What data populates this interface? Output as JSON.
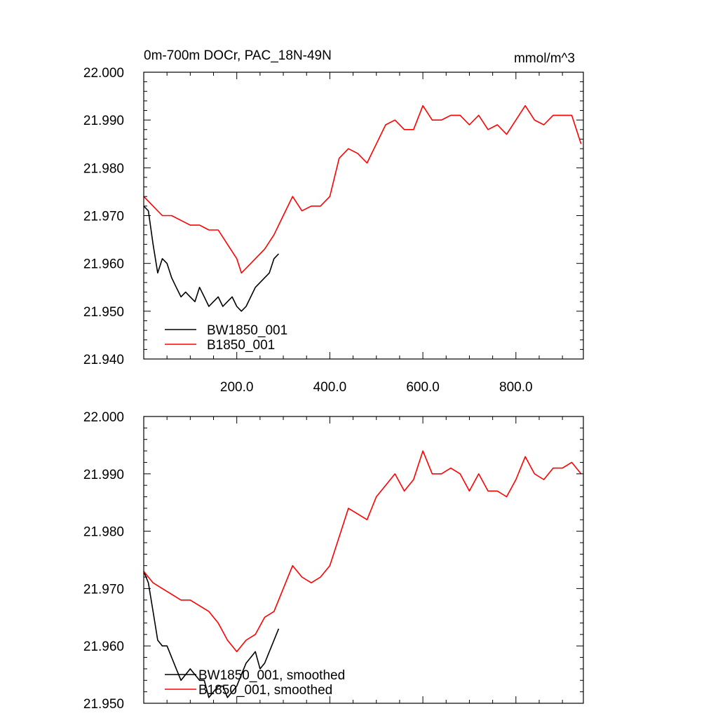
{
  "colors": {
    "BW1850_001": "#000000",
    "B1850_001": "#ff0000"
  },
  "chart_data": [
    {
      "type": "line",
      "title": "0m-700m DOCr, PAC_18N-49N",
      "units": "mmol/m^3",
      "xlim": [
        0,
        945
      ],
      "ylim": [
        21.94,
        22.0
      ],
      "grid": false,
      "x_ticks": [
        200,
        400,
        600,
        800
      ],
      "x_tick_labels": [
        "200.0",
        "400.0",
        "600.0",
        "800.0"
      ],
      "y_ticks": [
        21.94,
        21.95,
        21.96,
        21.97,
        21.98,
        21.99,
        22.0
      ],
      "y_tick_labels": [
        "21.940",
        "21.950",
        "21.960",
        "21.970",
        "21.980",
        "21.990",
        "22.000"
      ],
      "legend_position": "bottom-left",
      "series": [
        {
          "name": "BW1850_001",
          "color": "#000000",
          "x": [
            0,
            10,
            20,
            30,
            40,
            50,
            60,
            70,
            80,
            90,
            100,
            110,
            120,
            130,
            140,
            150,
            160,
            170,
            180,
            190,
            200,
            210,
            220,
            230,
            240,
            250,
            260,
            270,
            280,
            290
          ],
          "y": [
            21.972,
            21.971,
            21.964,
            21.958,
            21.961,
            21.96,
            21.957,
            21.955,
            21.953,
            21.954,
            21.953,
            21.952,
            21.955,
            21.953,
            21.951,
            21.952,
            21.953,
            21.951,
            21.952,
            21.953,
            21.951,
            21.95,
            21.951,
            21.953,
            21.955,
            21.956,
            21.957,
            21.958,
            21.961,
            21.962
          ]
        },
        {
          "name": "B1850_001",
          "color": "#ff0000",
          "x": [
            0,
            20,
            40,
            60,
            80,
            100,
            120,
            140,
            160,
            180,
            200,
            210,
            220,
            240,
            260,
            280,
            300,
            320,
            340,
            360,
            380,
            400,
            420,
            440,
            460,
            480,
            500,
            520,
            540,
            560,
            580,
            600,
            620,
            640,
            660,
            680,
            700,
            720,
            740,
            760,
            780,
            800,
            820,
            840,
            860,
            880,
            900,
            920,
            940
          ],
          "y": [
            21.974,
            21.972,
            21.97,
            21.97,
            21.969,
            21.968,
            21.968,
            21.967,
            21.967,
            21.964,
            21.961,
            21.958,
            21.959,
            21.961,
            21.963,
            21.966,
            21.97,
            21.974,
            21.971,
            21.972,
            21.972,
            21.974,
            21.982,
            21.984,
            21.983,
            21.981,
            21.985,
            21.989,
            21.99,
            21.988,
            21.988,
            21.993,
            21.99,
            21.99,
            21.991,
            21.991,
            21.989,
            21.991,
            21.988,
            21.989,
            21.987,
            21.99,
            21.993,
            21.99,
            21.989,
            21.991,
            21.991,
            21.991,
            21.985
          ]
        }
      ]
    },
    {
      "type": "line",
      "xlim": [
        0,
        945
      ],
      "ylim": [
        21.95,
        22.0
      ],
      "grid": false,
      "x_ticks": [
        200,
        400,
        600,
        800
      ],
      "y_ticks": [
        21.95,
        21.96,
        21.97,
        21.98,
        21.99,
        22.0
      ],
      "y_tick_labels": [
        "21.950",
        "21.960",
        "21.970",
        "21.980",
        "21.990",
        "22.000"
      ],
      "legend_position": "bottom-left",
      "series": [
        {
          "name": "BW1850_001, smoothed",
          "color": "#000000",
          "x": [
            0,
            10,
            20,
            30,
            40,
            50,
            60,
            70,
            80,
            90,
            100,
            110,
            120,
            130,
            140,
            150,
            160,
            170,
            180,
            190,
            200,
            210,
            220,
            230,
            240,
            250,
            260,
            270,
            280,
            290
          ],
          "y": [
            21.973,
            21.971,
            21.966,
            21.961,
            21.96,
            21.96,
            21.958,
            21.956,
            21.954,
            21.955,
            21.956,
            21.955,
            21.954,
            21.954,
            21.951,
            21.952,
            21.953,
            21.953,
            21.951,
            21.952,
            21.953,
            21.955,
            21.957,
            21.958,
            21.959,
            21.956,
            21.957,
            21.959,
            21.961,
            21.963
          ]
        },
        {
          "name": "B1850_001, smoothed",
          "color": "#ff0000",
          "x": [
            0,
            20,
            40,
            60,
            80,
            100,
            120,
            140,
            160,
            180,
            200,
            210,
            220,
            240,
            260,
            280,
            300,
            320,
            340,
            360,
            380,
            400,
            420,
            440,
            460,
            480,
            500,
            520,
            540,
            560,
            580,
            600,
            620,
            640,
            660,
            680,
            700,
            720,
            740,
            760,
            780,
            800,
            820,
            840,
            860,
            880,
            900,
            920,
            940
          ],
          "y": [
            21.973,
            21.971,
            21.97,
            21.969,
            21.968,
            21.968,
            21.967,
            21.966,
            21.964,
            21.961,
            21.959,
            21.96,
            21.961,
            21.962,
            21.965,
            21.966,
            21.97,
            21.974,
            21.972,
            21.971,
            21.972,
            21.974,
            21.979,
            21.984,
            21.983,
            21.982,
            21.986,
            21.988,
            21.99,
            21.987,
            21.989,
            21.994,
            21.99,
            21.99,
            21.991,
            21.99,
            21.987,
            21.99,
            21.987,
            21.987,
            21.986,
            21.989,
            21.993,
            21.99,
            21.989,
            21.991,
            21.991,
            21.992,
            21.99
          ]
        }
      ]
    }
  ]
}
